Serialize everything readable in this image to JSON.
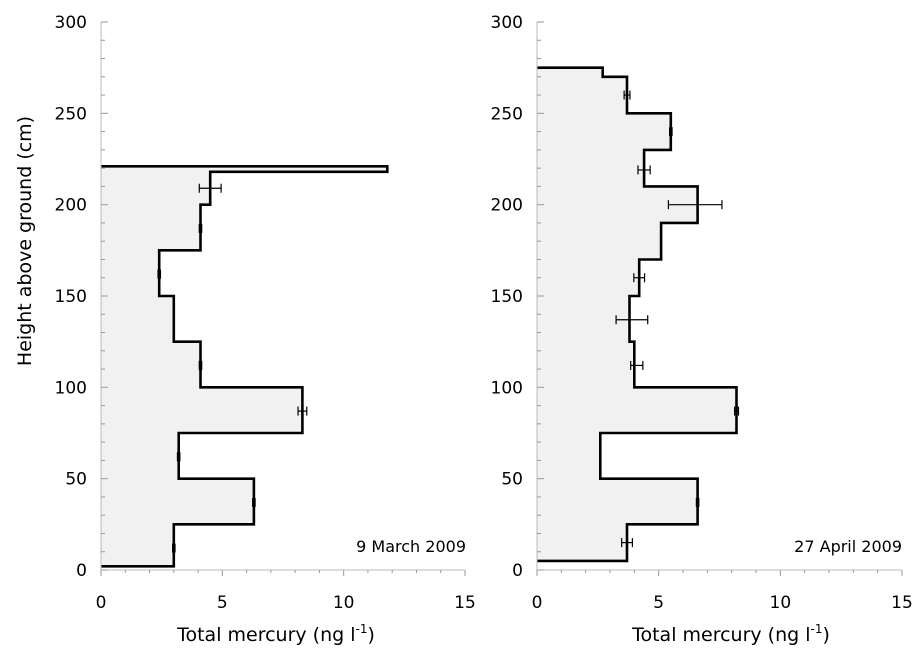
{
  "chart_data": [
    {
      "type": "step",
      "panel_label": "9 March 2009",
      "xlabel": "Total mercury (ng l",
      "xlabel_sup": "-1",
      "xlabel_close": ")",
      "ylabel": "Height above ground (cm)",
      "xlim": [
        0,
        15
      ],
      "ylim": [
        0,
        300
      ],
      "x_ticks": [
        "0",
        "5",
        "10",
        "15"
      ],
      "y_ticks": [
        "0",
        "50",
        "100",
        "150",
        "200",
        "250",
        "300"
      ],
      "grid": false,
      "profile": [
        {
          "y0": 2,
          "y1": 25,
          "x": 3.0
        },
        {
          "y0": 25,
          "y1": 50,
          "x": 6.3
        },
        {
          "y0": 50,
          "y1": 75,
          "x": 3.2
        },
        {
          "y0": 75,
          "y1": 100,
          "x": 8.3
        },
        {
          "y0": 100,
          "y1": 125,
          "x": 4.1
        },
        {
          "y0": 125,
          "y1": 150,
          "x": 3.0
        },
        {
          "y0": 150,
          "y1": 175,
          "x": 2.4
        },
        {
          "y0": 175,
          "y1": 200,
          "x": 4.1
        },
        {
          "y0": 200,
          "y1": 218,
          "x": 4.5
        },
        {
          "y0": 218,
          "y1": 221,
          "x": 11.8
        }
      ],
      "error_bars": [
        {
          "y": 12,
          "x": 3.0,
          "err": 0.05
        },
        {
          "y": 37,
          "x": 6.3,
          "err": 0.05
        },
        {
          "y": 62,
          "x": 3.2,
          "err": 0.05
        },
        {
          "y": 87,
          "x": 8.3,
          "err": 0.18
        },
        {
          "y": 112,
          "x": 4.1,
          "err": 0.05
        },
        {
          "y": 162,
          "x": 2.4,
          "err": 0.05
        },
        {
          "y": 187,
          "x": 4.1,
          "err": 0.05
        },
        {
          "y": 209,
          "x": 4.5,
          "err": 0.45
        }
      ]
    },
    {
      "type": "step",
      "panel_label": "27 April 2009",
      "xlabel": "Total mercury (ng l",
      "xlabel_sup": "-1",
      "xlabel_close": ")",
      "ylabel": "",
      "xlim": [
        0,
        15
      ],
      "ylim": [
        0,
        300
      ],
      "x_ticks": [
        "0",
        "5",
        "10",
        "15"
      ],
      "y_ticks": [
        "0",
        "50",
        "100",
        "150",
        "200",
        "250",
        "300"
      ],
      "grid": false,
      "profile": [
        {
          "y0": 5,
          "y1": 25,
          "x": 3.7
        },
        {
          "y0": 25,
          "y1": 50,
          "x": 6.6
        },
        {
          "y0": 50,
          "y1": 75,
          "x": 2.6
        },
        {
          "y0": 75,
          "y1": 100,
          "x": 8.2
        },
        {
          "y0": 100,
          "y1": 125,
          "x": 4.0
        },
        {
          "y0": 125,
          "y1": 150,
          "x": 3.8
        },
        {
          "y0": 150,
          "y1": 170,
          "x": 4.2
        },
        {
          "y0": 170,
          "y1": 190,
          "x": 5.1
        },
        {
          "y0": 190,
          "y1": 210,
          "x": 6.6
        },
        {
          "y0": 210,
          "y1": 230,
          "x": 4.4
        },
        {
          "y0": 230,
          "y1": 250,
          "x": 5.5
        },
        {
          "y0": 250,
          "y1": 270,
          "x": 3.7
        },
        {
          "y0": 270,
          "y1": 275,
          "x": 2.7
        }
      ],
      "error_bars": [
        {
          "y": 15,
          "x": 3.7,
          "err": 0.22
        },
        {
          "y": 37,
          "x": 6.6,
          "err": 0.05
        },
        {
          "y": 87,
          "x": 8.2,
          "err": 0.08
        },
        {
          "y": 112,
          "x": 4.1,
          "err": 0.25
        },
        {
          "y": 137,
          "x": 3.9,
          "err": 0.65
        },
        {
          "y": 160,
          "x": 4.2,
          "err": 0.22
        },
        {
          "y": 200,
          "x": 6.5,
          "err": 1.1
        },
        {
          "y": 219,
          "x": 4.4,
          "err": 0.25
        },
        {
          "y": 240,
          "x": 5.5,
          "err": 0.05
        },
        {
          "y": 260,
          "x": 3.7,
          "err": 0.12
        }
      ]
    }
  ]
}
